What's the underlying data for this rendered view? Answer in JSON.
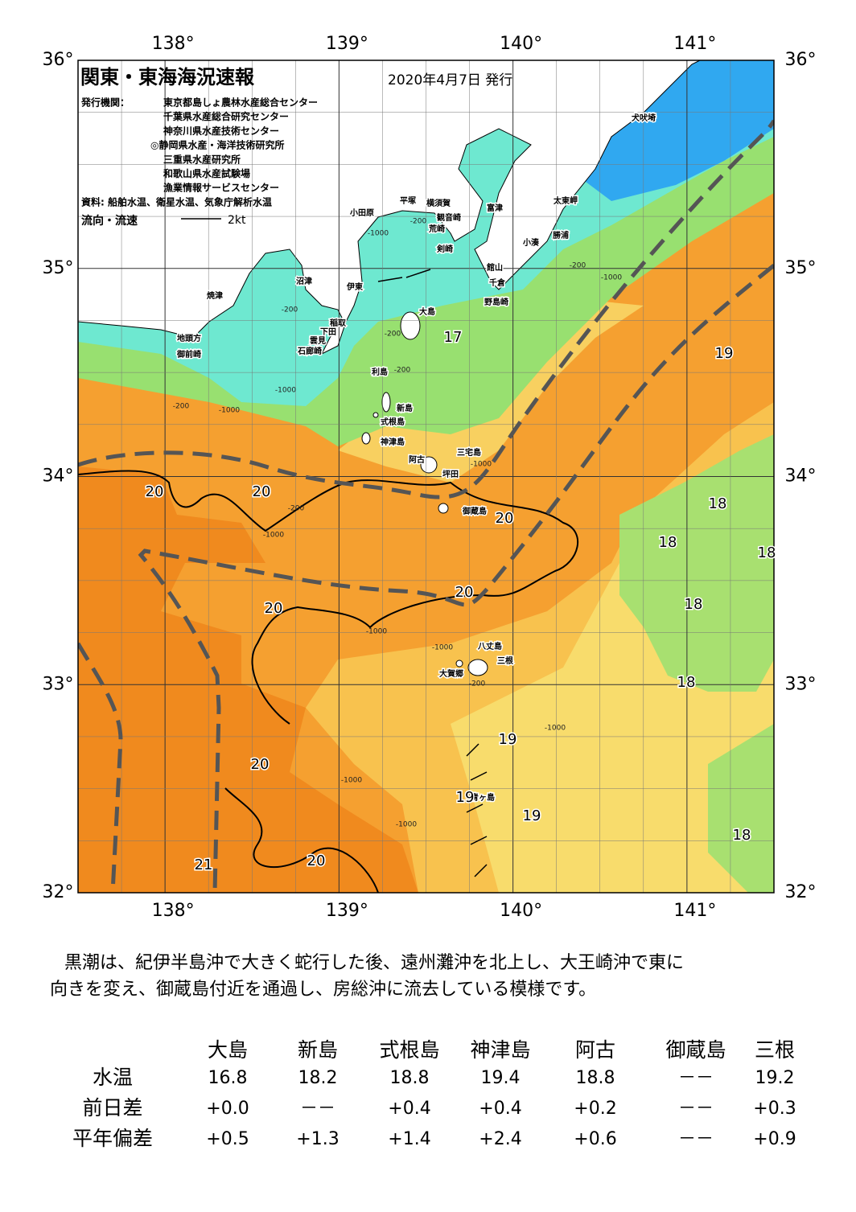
{
  "header": {
    "title": "関東・東海海況速報",
    "date": "2020年4月7日 発行",
    "issuer_label": "発行機関：",
    "issuers": [
      "東京都島しょ農林水産総合センター",
      "千葉県水産総合研究センター",
      "神奈川県水産技術センター",
      "◎静岡県水産・海洋技術研究所",
      "三重県水産研究所",
      "和歌山県水産試験場",
      "漁業情報サービスセンター"
    ],
    "source": "資料: 船舶水温、衛星水温、気象庁解析水温",
    "flow_label": "流向・流速",
    "flow_scale": "2kt"
  },
  "map": {
    "lon_labels": [
      "138°",
      "139°",
      "140°",
      "141°"
    ],
    "lat_labels": [
      "36°",
      "35°",
      "34°",
      "33°",
      "32°"
    ],
    "places": [
      "犬吠埼",
      "太東岬",
      "勝浦",
      "小湊",
      "富津",
      "横須賀",
      "観音崎",
      "荒崎",
      "剣崎",
      "平塚",
      "小田原",
      "館山",
      "千倉",
      "野島崎",
      "大島",
      "沼津",
      "伊東",
      "焼津",
      "稲取",
      "下田",
      "雲見",
      "石廊崎",
      "地頭方",
      "御前崎",
      "利島",
      "新島",
      "式根島",
      "神津島",
      "三宅島",
      "阿古",
      "坪田",
      "御蔵島",
      "八丈島",
      "三根",
      "大賀郷",
      "青ヶ島"
    ],
    "temp_labels": [
      "17",
      "19",
      "20",
      "20",
      "20",
      "18",
      "18",
      "18",
      "18",
      "20",
      "20",
      "18",
      "19",
      "20",
      "19",
      "19",
      "18",
      "21",
      "20"
    ],
    "depth_labels": [
      "-200",
      "-1000",
      "-200",
      "-200",
      "-200",
      "-1000",
      "-1000",
      "-200",
      "-200",
      "-1000",
      "-1000",
      "-1000",
      "-200",
      "-1000",
      "-1000",
      "-1000",
      "-1000",
      "-1000",
      "-200"
    ]
  },
  "description": [
    "黒潮は、紀伊半島沖で大きく蛇行した後、遠州灘沖を北上し、大王崎沖で東に",
    "向きを変え、御蔵島付近を通過し、房総沖に流去している模様です。"
  ],
  "table": {
    "columns": [
      "大島",
      "新島",
      "式根島",
      "神津島",
      "阿古",
      "御蔵島",
      "三根"
    ],
    "rows": [
      {
        "label": "水温",
        "cells": [
          "16.8",
          "18.2",
          "18.8",
          "19.4",
          "18.8",
          "－－",
          "19.2"
        ]
      },
      {
        "label": "前日差",
        "cells": [
          "+0.0",
          "－－",
          "+0.4",
          "+0.4",
          "+0.2",
          "－－",
          "+0.3"
        ]
      },
      {
        "label": "平年偏差",
        "cells": [
          "+0.5",
          "+1.3",
          "+1.4",
          "+2.4",
          "+0.6",
          "－－",
          "+0.9"
        ]
      }
    ]
  }
}
